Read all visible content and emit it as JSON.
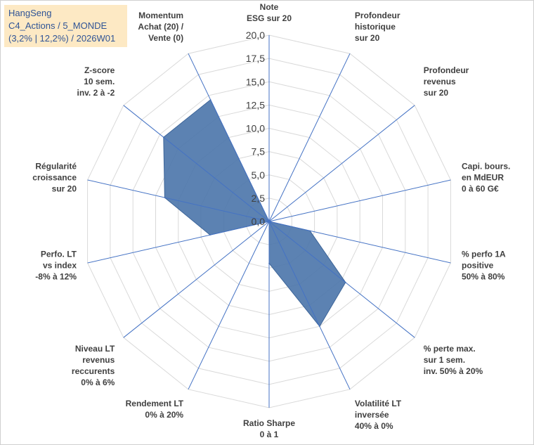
{
  "info": {
    "line1": "HangSeng",
    "line2": "C4_Actions / 5_MONDE",
    "line3": "(3,2% | 12,2%) / 2026W01"
  },
  "colors": {
    "fill": "#4a74aa",
    "stroke": "#3d6599",
    "grid": "#d9d9d9",
    "axis": "#4472c4",
    "info_bg": "#fde9c4",
    "info_text": "#2f5496"
  },
  "chart_data": {
    "type": "radar",
    "rmin": 0,
    "rmax": 20,
    "tick_labels": [
      "0,0",
      "2,5",
      "5,0",
      "7,5",
      "10,0",
      "12,5",
      "15,0",
      "17,5",
      "20,0"
    ],
    "categories": [
      [
        "Note",
        "ESG sur 20"
      ],
      [
        "Profondeur",
        "historique",
        "sur 20"
      ],
      [
        "Profondeur",
        "revenus",
        "sur 20"
      ],
      [
        "Capi. bours.",
        "en MdEUR",
        "0 à 60 G€"
      ],
      [
        "% perfo 1A",
        "positive",
        "50% à 80%"
      ],
      [
        "% perte max.",
        "sur 1 sem.",
        "inv. 50% à 20%"
      ],
      [
        "Volatilité LT",
        "inversée",
        "40% à 0%"
      ],
      [
        "Ratio Sharpe",
        "0 à 1"
      ],
      [
        "Rendement LT",
        "0% à 20%"
      ],
      [
        "Niveau LT",
        "revenus",
        "reccurents",
        "0% à 6%"
      ],
      [
        "Perfo. LT",
        "vs index",
        "-8% à 12%"
      ],
      [
        "Régularité",
        "croissance",
        "sur 20"
      ],
      [
        "Z-score",
        "10 sem.",
        "inv. 2 à -2"
      ],
      [
        "Momentum",
        "Achat (20) /",
        "Vente (0)"
      ]
    ],
    "series": [
      {
        "name": "HangSeng",
        "values": [
          0,
          0,
          0,
          0,
          4.5,
          10.5,
          12.5,
          4.5,
          0,
          0,
          6.5,
          11.5,
          14.5,
          14.5
        ]
      }
    ]
  }
}
